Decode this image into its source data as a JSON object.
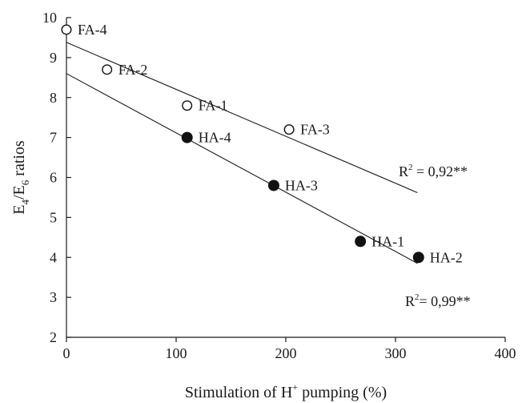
{
  "chart_data": {
    "type": "scatter",
    "xlabel_text": "Stimulation of H",
    "xlabel_sup": "+",
    "xlabel_tail": " pumping (%)",
    "ylabel_parts": [
      "E",
      "4",
      "/E",
      "6",
      " ratios"
    ],
    "xlim": [
      0,
      400
    ],
    "ylim": [
      2,
      10
    ],
    "xticks": [
      0,
      100,
      200,
      300,
      400
    ],
    "yticks": [
      2,
      3,
      4,
      5,
      6,
      7,
      8,
      9,
      10
    ],
    "grid": false,
    "series": [
      {
        "marker": "open-circle",
        "points": [
          {
            "label": "FA-4",
            "x": 0,
            "y": 9.7
          },
          {
            "label": "FA-2",
            "x": 37,
            "y": 8.7
          },
          {
            "label": "FA-1",
            "x": 110,
            "y": 7.8
          },
          {
            "label": "FA-3",
            "x": 203,
            "y": 7.2
          }
        ],
        "fit": {
          "x": [
            0,
            320
          ],
          "y": [
            9.38,
            5.62
          ]
        },
        "r2_prefix": "R",
        "r2_sup": "2",
        "r2_value": " = 0,92**"
      },
      {
        "marker": "filled-circle",
        "points": [
          {
            "label": "HA-4",
            "x": 110,
            "y": 7.0
          },
          {
            "label": "HA-3",
            "x": 189,
            "y": 5.8
          },
          {
            "label": "HA-1",
            "x": 268,
            "y": 4.4
          },
          {
            "label": "HA-2",
            "x": 321,
            "y": 4.0
          }
        ],
        "fit": {
          "x": [
            0,
            320
          ],
          "y": [
            8.6,
            3.85
          ]
        },
        "r2_prefix": "R",
        "r2_sup": "2",
        "r2_value": "= 0,99**"
      }
    ]
  }
}
